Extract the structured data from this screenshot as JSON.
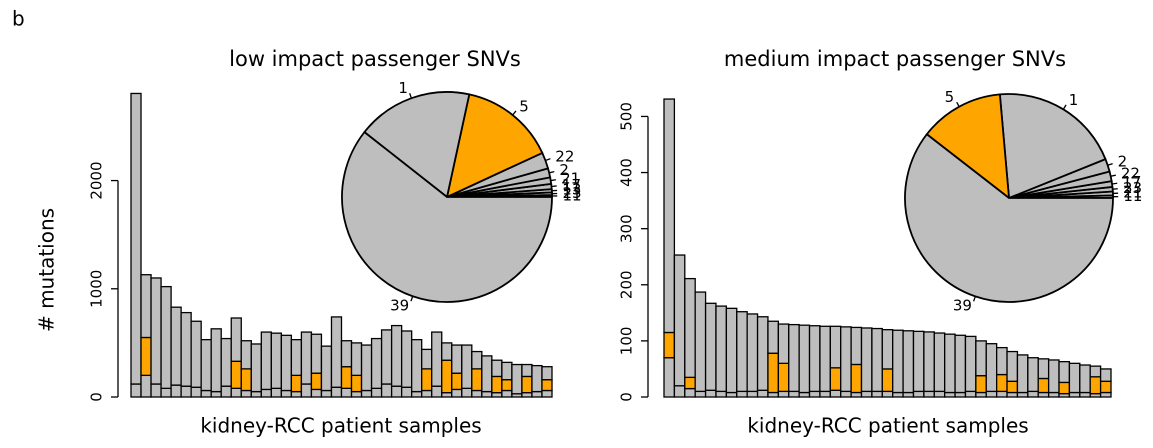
{
  "panel_label": "b",
  "chart_data": [
    {
      "type": "bar",
      "title": "low impact passenger SNVs",
      "xlabel": "kidney-RCC patient samples",
      "ylabel": "# mutations",
      "ylim": [
        0,
        2800
      ],
      "yticks": [
        0,
        1000,
        2000
      ],
      "stacked": true,
      "series": [
        {
          "color": "#bebebe",
          "values": [
            120,
            200,
            120,
            80,
            110,
            100,
            90,
            60,
            50,
            100,
            80,
            60,
            50,
            70,
            80,
            60,
            50,
            120,
            70,
            60,
            90,
            80,
            50,
            60,
            80,
            120,
            100,
            90,
            50,
            60,
            100,
            40,
            70,
            80,
            60,
            50,
            40,
            60,
            30,
            40,
            50,
            60
          ]
        },
        {
          "color": "#ffa500",
          "values": [
            0,
            350,
            0,
            0,
            0,
            0,
            0,
            0,
            0,
            0,
            250,
            200,
            0,
            0,
            0,
            0,
            150,
            0,
            150,
            0,
            0,
            200,
            150,
            0,
            0,
            0,
            0,
            0,
            0,
            200,
            0,
            300,
            150,
            0,
            200,
            0,
            150,
            100,
            0,
            150,
            0,
            100
          ]
        },
        {
          "color": "#bebebe",
          "values": [
            2685,
            580,
            980,
            940,
            720,
            680,
            610,
            470,
            580,
            440,
            400,
            260,
            440,
            530,
            510,
            510,
            330,
            480,
            360,
            410,
            650,
            240,
            300,
            420,
            460,
            500,
            560,
            520,
            480,
            180,
            500,
            160,
            260,
            400,
            160,
            330,
            150,
            160,
            270,
            110,
            240,
            120
          ]
        }
      ]
    },
    {
      "type": "pie",
      "labels": [
        "11",
        "23",
        "13",
        "17",
        "21",
        "2",
        "22",
        "5",
        "1",
        "39"
      ],
      "values": [
        0.3,
        0.4,
        0.5,
        0.8,
        1,
        1.4,
        2.5,
        14.7,
        17.8,
        60.6
      ],
      "colors": [
        "#bebebe",
        "#bebebe",
        "#bebebe",
        "#bebebe",
        "#bebebe",
        "#bebebe",
        "#bebebe",
        "#ffa500",
        "#bebebe",
        "#bebebe"
      ]
    },
    {
      "type": "bar",
      "title": "medium impact passenger SNVs",
      "xlabel": "kidney-RCC patient samples",
      "ylim": [
        0,
        540
      ],
      "yticks": [
        0,
        100,
        200,
        300,
        400,
        500
      ],
      "stacked": true,
      "series": [
        {
          "color": "#bebebe",
          "values": [
            70,
            20,
            15,
            10,
            12,
            10,
            8,
            10,
            10,
            12,
            8,
            10,
            10,
            8,
            10,
            10,
            12,
            10,
            8,
            10,
            10,
            10,
            8,
            8,
            10,
            10,
            10,
            8,
            8,
            10,
            8,
            10,
            10,
            8,
            8,
            10,
            8,
            8,
            6,
            8,
            8,
            6,
            8
          ]
        },
        {
          "color": "#ffa500",
          "values": [
            45,
            0,
            20,
            0,
            0,
            0,
            0,
            0,
            0,
            0,
            70,
            50,
            0,
            0,
            0,
            0,
            40,
            0,
            50,
            0,
            0,
            40,
            0,
            0,
            0,
            0,
            0,
            0,
            0,
            0,
            30,
            0,
            30,
            20,
            0,
            0,
            25,
            0,
            20,
            0,
            0,
            30,
            20
          ]
        },
        {
          "color": "#bebebe",
          "values": [
            416,
            233,
            176,
            177,
            155,
            152,
            150,
            142,
            138,
            131,
            57,
            70,
            119,
            120,
            117,
            116,
            74,
            115,
            66,
            113,
            112,
            70,
            111,
            110,
            107,
            106,
            104,
            104,
            102,
            98,
            62,
            85,
            48,
            53,
            67,
            60,
            35,
            58,
            37,
            52,
            49,
            19,
            22
          ]
        }
      ]
    },
    {
      "type": "pie",
      "labels": [
        "11",
        "21",
        "23",
        "17",
        "22",
        "2",
        "1",
        "5",
        "39"
      ],
      "values": [
        0.4,
        0.6,
        0.7,
        0.9,
        1.5,
        2.0,
        20.3,
        13.1,
        60.5
      ],
      "colors": [
        "#bebebe",
        "#bebebe",
        "#bebebe",
        "#bebebe",
        "#bebebe",
        "#bebebe",
        "#bebebe",
        "#ffa500",
        "#bebebe"
      ]
    }
  ]
}
